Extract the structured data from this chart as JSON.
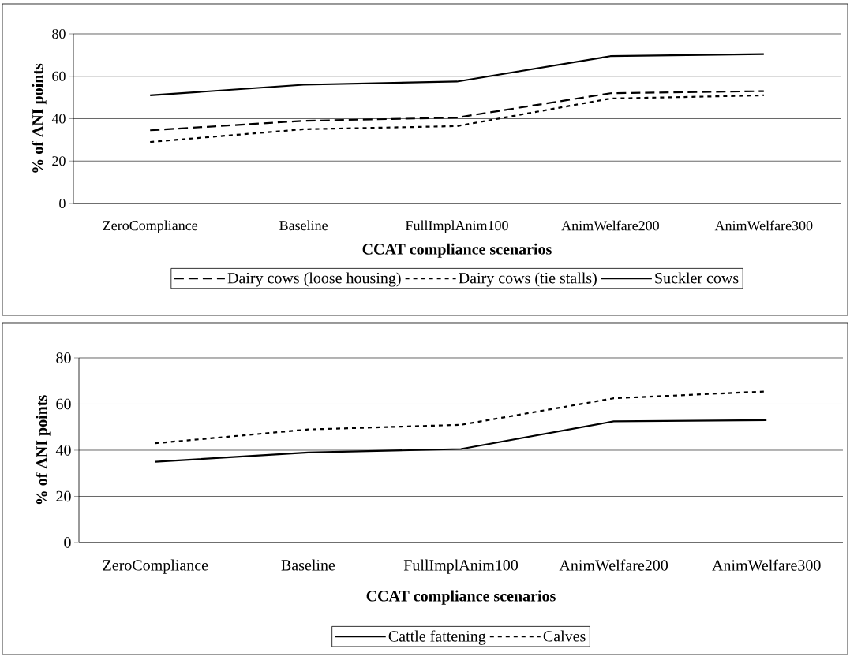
{
  "chart_data": [
    {
      "type": "line",
      "xlabel": "CCAT compliance scenarios",
      "ylabel": "% of ANI points",
      "categories": [
        "ZeroCompliance",
        "Baseline",
        "FullImplAnim100",
        "AnimWelfare200",
        "AnimWelfare300"
      ],
      "series": [
        {
          "name": "Dairy cows (loose housing)",
          "color": "#000000",
          "line_style": "dashed",
          "values": [
            34.5,
            39,
            40.5,
            52,
            53
          ]
        },
        {
          "name": "Dairy cows (tie stalls)",
          "color": "#000000",
          "line_style": "dotted",
          "values": [
            29,
            35,
            36.5,
            49.5,
            51
          ]
        },
        {
          "name": "Suckler cows",
          "color": "#000000",
          "line_style": "solid",
          "values": [
            51,
            56,
            57.5,
            69.5,
            70.5
          ]
        }
      ],
      "ylim": [
        0,
        80
      ],
      "yticks": [
        0,
        20,
        40,
        60,
        80
      ],
      "grid": "y",
      "legend": "bottom"
    },
    {
      "type": "line",
      "xlabel": "CCAT compliance scenarios",
      "ylabel": "% of ANI points",
      "categories": [
        "ZeroCompliance",
        "Baseline",
        "FullImplAnim100",
        "AnimWelfare200",
        "AnimWelfare300"
      ],
      "series": [
        {
          "name": "Cattle fattening",
          "color": "#000000",
          "line_style": "solid",
          "values": [
            35,
            39,
            40.5,
            52.5,
            53
          ]
        },
        {
          "name": "Calves",
          "color": "#000000",
          "line_style": "dotted",
          "values": [
            43,
            49,
            51,
            62.5,
            65.5
          ]
        }
      ],
      "ylim": [
        0,
        80
      ],
      "yticks": [
        0,
        20,
        40,
        60,
        80
      ],
      "grid": "y",
      "legend": "bottom"
    }
  ]
}
